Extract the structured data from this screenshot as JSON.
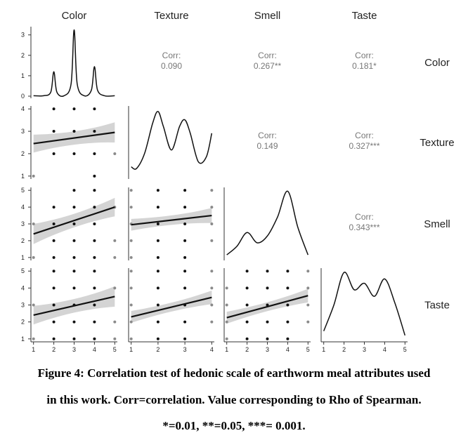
{
  "chart_data": {
    "type": "scatter-matrix",
    "variables": [
      "Color",
      "Texture",
      "Smell",
      "Taste"
    ],
    "ranges": {
      "Color": {
        "xlim": [
          1,
          5
        ],
        "ticks": [
          1,
          2,
          3,
          4,
          5
        ]
      },
      "Texture": {
        "xlim": [
          1,
          4
        ],
        "ticks": [
          1,
          2,
          3,
          4
        ]
      },
      "Smell": {
        "xlim": [
          1,
          5
        ],
        "ticks": [
          1,
          2,
          3,
          4,
          5
        ]
      },
      "Taste": {
        "xlim": [
          1,
          5
        ],
        "ticks": [
          1,
          2,
          3,
          4,
          5
        ]
      }
    },
    "correlations": [
      {
        "pair": [
          "Color",
          "Texture"
        ],
        "label": "Corr:",
        "value": "0.090"
      },
      {
        "pair": [
          "Color",
          "Smell"
        ],
        "label": "Corr:",
        "value": "0.267**"
      },
      {
        "pair": [
          "Color",
          "Taste"
        ],
        "label": "Corr:",
        "value": "0.181*"
      },
      {
        "pair": [
          "Texture",
          "Smell"
        ],
        "label": "Corr:",
        "value": "0.149"
      },
      {
        "pair": [
          "Texture",
          "Taste"
        ],
        "label": "Corr:",
        "value": "0.327***"
      },
      {
        "pair": [
          "Smell",
          "Taste"
        ],
        "label": "Corr:",
        "value": "0.343***"
      }
    ],
    "densities": {
      "Color": {
        "x": [
          1,
          1.5,
          1.85,
          2,
          2.15,
          2.5,
          2.85,
          3,
          3.15,
          3.5,
          3.85,
          4,
          4.15,
          4.5,
          5
        ],
        "y": [
          0.02,
          0.02,
          0.2,
          1.2,
          0.2,
          0.02,
          0.6,
          3.25,
          0.6,
          0.02,
          0.3,
          1.45,
          0.3,
          0.02,
          0.02
        ],
        "ylim": [
          0,
          3.3
        ],
        "yticks": [
          0,
          1,
          2,
          3
        ]
      },
      "Texture": {
        "x": [
          1,
          1.2,
          1.5,
          1.8,
          2,
          2.2,
          2.5,
          2.8,
          3,
          3.2,
          3.5,
          3.8,
          4
        ],
        "y": [
          0.3,
          0.25,
          0.7,
          1.6,
          1.95,
          1.5,
          0.8,
          1.5,
          1.7,
          1.3,
          0.45,
          0.6,
          1.3
        ],
        "ylim": [
          0,
          2.05
        ]
      },
      "Smell": {
        "x": [
          1,
          1.5,
          2,
          2.5,
          3,
          3.5,
          4,
          4.5,
          5
        ],
        "y": [
          0.1,
          0.35,
          0.75,
          0.45,
          0.65,
          1.2,
          1.95,
          0.9,
          0.1
        ],
        "ylim": [
          0,
          2.0
        ]
      },
      "Taste": {
        "x": [
          1,
          1.5,
          2,
          2.5,
          3,
          3.5,
          4,
          4.5,
          5
        ],
        "y": [
          0.2,
          0.8,
          1.55,
          1.15,
          1.3,
          1.0,
          1.4,
          0.85,
          0.1
        ],
        "ylim": [
          0,
          1.6
        ]
      }
    },
    "scatter": [
      {
        "x": "Color",
        "y": "Texture",
        "points": [
          [
            1,
            1
          ],
          [
            2,
            2
          ],
          [
            2,
            3
          ],
          [
            2,
            4
          ],
          [
            3,
            2
          ],
          [
            3,
            3
          ],
          [
            3,
            4
          ],
          [
            4,
            1
          ],
          [
            4,
            2
          ],
          [
            4,
            3
          ],
          [
            4,
            4
          ],
          [
            5,
            2
          ]
        ],
        "fit": {
          "y_at_xmin": 2.45,
          "y_at_xmax": 2.95,
          "band_at_xmin": 0.4,
          "band_at_xmax": 0.45
        }
      },
      {
        "x": "Color",
        "y": "Smell",
        "points": [
          [
            1,
            1
          ],
          [
            1,
            3
          ],
          [
            2,
            1
          ],
          [
            2,
            2
          ],
          [
            2,
            3
          ],
          [
            2,
            4
          ],
          [
            3,
            1
          ],
          [
            3,
            2
          ],
          [
            3,
            3
          ],
          [
            3,
            4
          ],
          [
            3,
            5
          ],
          [
            4,
            1
          ],
          [
            4,
            2
          ],
          [
            4,
            3
          ],
          [
            4,
            4
          ],
          [
            4,
            5
          ],
          [
            5,
            1
          ],
          [
            5,
            2
          ],
          [
            5,
            4
          ]
        ],
        "fit": {
          "y_at_xmin": 2.4,
          "y_at_xmax": 4.0,
          "band_at_xmin": 0.6,
          "band_at_xmax": 0.55
        }
      },
      {
        "x": "Texture",
        "y": "Smell",
        "points": [
          [
            1,
            1
          ],
          [
            1,
            2
          ],
          [
            1,
            3
          ],
          [
            1,
            4
          ],
          [
            1,
            5
          ],
          [
            2,
            1
          ],
          [
            2,
            2
          ],
          [
            2,
            3
          ],
          [
            2,
            4
          ],
          [
            2,
            5
          ],
          [
            3,
            1
          ],
          [
            3,
            2
          ],
          [
            3,
            3
          ],
          [
            3,
            4
          ],
          [
            3,
            5
          ],
          [
            4,
            2
          ],
          [
            4,
            3
          ],
          [
            4,
            4
          ],
          [
            4,
            5
          ]
        ],
        "fit": {
          "y_at_xmin": 2.95,
          "y_at_xmax": 3.5,
          "band_at_xmin": 0.35,
          "band_at_xmax": 0.45
        }
      },
      {
        "x": "Color",
        "y": "Taste",
        "points": [
          [
            1,
            1
          ],
          [
            1,
            3
          ],
          [
            2,
            1
          ],
          [
            2,
            2
          ],
          [
            2,
            3
          ],
          [
            2,
            4
          ],
          [
            2,
            5
          ],
          [
            3,
            1
          ],
          [
            3,
            2
          ],
          [
            3,
            3
          ],
          [
            3,
            4
          ],
          [
            3,
            5
          ],
          [
            4,
            1
          ],
          [
            4,
            2
          ],
          [
            4,
            3
          ],
          [
            4,
            4
          ],
          [
            4,
            5
          ],
          [
            5,
            1
          ],
          [
            5,
            2
          ],
          [
            5,
            4
          ]
        ],
        "fit": {
          "y_at_xmin": 2.4,
          "y_at_xmax": 3.5,
          "band_at_xmin": 0.55,
          "band_at_xmax": 0.6
        }
      },
      {
        "x": "Texture",
        "y": "Taste",
        "points": [
          [
            1,
            1
          ],
          [
            1,
            2
          ],
          [
            1,
            3
          ],
          [
            1,
            4
          ],
          [
            1,
            5
          ],
          [
            2,
            1
          ],
          [
            2,
            2
          ],
          [
            2,
            3
          ],
          [
            2,
            4
          ],
          [
            2,
            5
          ],
          [
            3,
            1
          ],
          [
            3,
            2
          ],
          [
            3,
            3
          ],
          [
            3,
            4
          ],
          [
            3,
            5
          ],
          [
            4,
            2
          ],
          [
            4,
            3
          ],
          [
            4,
            4
          ],
          [
            4,
            5
          ]
        ],
        "fit": {
          "y_at_xmin": 2.3,
          "y_at_xmax": 3.45,
          "band_at_xmin": 0.35,
          "band_at_xmax": 0.4
        }
      },
      {
        "x": "Smell",
        "y": "Taste",
        "points": [
          [
            1,
            1
          ],
          [
            1,
            2
          ],
          [
            1,
            3
          ],
          [
            1,
            4
          ],
          [
            2,
            1
          ],
          [
            2,
            2
          ],
          [
            2,
            3
          ],
          [
            2,
            4
          ],
          [
            2,
            5
          ],
          [
            3,
            1
          ],
          [
            3,
            2
          ],
          [
            3,
            3
          ],
          [
            3,
            4
          ],
          [
            3,
            5
          ],
          [
            4,
            1
          ],
          [
            4,
            2
          ],
          [
            4,
            3
          ],
          [
            4,
            4
          ],
          [
            4,
            5
          ],
          [
            5,
            2
          ],
          [
            5,
            3
          ],
          [
            5,
            4
          ],
          [
            5,
            5
          ]
        ],
        "fit": {
          "y_at_xmin": 2.25,
          "y_at_xmax": 3.55,
          "band_at_xmin": 0.35,
          "band_at_xmax": 0.4
        }
      }
    ]
  },
  "caption": {
    "line1": "Figure 4: Correlation test of hedonic scale of earthworm meal attributes used",
    "line2": "in this work. Corr=correlation. Value corresponding to Rho of Spearman.",
    "line3": "*=0.01, **=0.05, ***= 0.001."
  },
  "colors": {
    "point_dark": "#111111",
    "point_light": "#8a8a8a",
    "band": "#d4d4d4",
    "line": "#111111"
  }
}
